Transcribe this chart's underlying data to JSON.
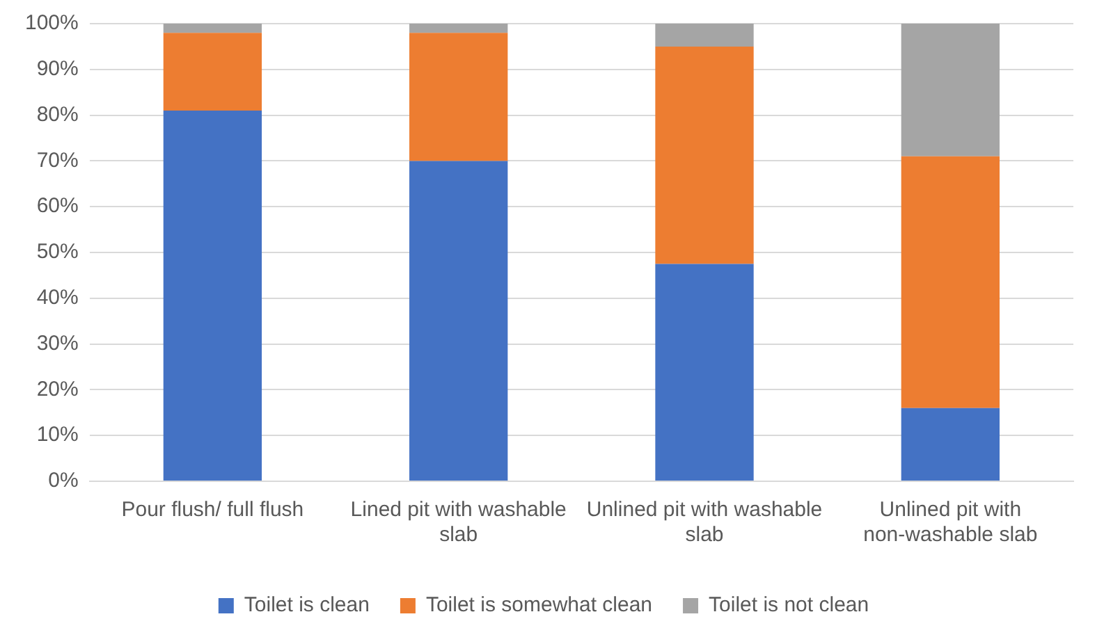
{
  "chart_data": {
    "type": "bar",
    "stacked": true,
    "categories": [
      "Pour flush/ full flush",
      "Lined pit with washable slab",
      "Unlined pit with washable slab",
      "Unlined pit with non-washable slab"
    ],
    "series": [
      {
        "name": "Toilet is clean",
        "color": "#4472c4",
        "values": [
          81,
          70,
          47.5,
          16
        ]
      },
      {
        "name": "Toilet is somewhat clean",
        "color": "#ed7d31",
        "values": [
          17,
          28,
          47.5,
          55
        ]
      },
      {
        "name": "Toilet is not clean",
        "color": "#a5a5a5",
        "values": [
          2,
          2,
          5,
          29
        ]
      }
    ],
    "ylim": [
      0,
      100
    ],
    "yticks": [
      {
        "value": 0,
        "label": "0%"
      },
      {
        "value": 10,
        "label": "10%"
      },
      {
        "value": 20,
        "label": "20%"
      },
      {
        "value": 30,
        "label": "30%"
      },
      {
        "value": 40,
        "label": "40%"
      },
      {
        "value": 50,
        "label": "50%"
      },
      {
        "value": 60,
        "label": "60%"
      },
      {
        "value": 70,
        "label": "70%"
      },
      {
        "value": 80,
        "label": "80%"
      },
      {
        "value": 90,
        "label": "90%"
      },
      {
        "value": 100,
        "label": "100%"
      }
    ],
    "grid": "y",
    "legend": "bottom"
  }
}
